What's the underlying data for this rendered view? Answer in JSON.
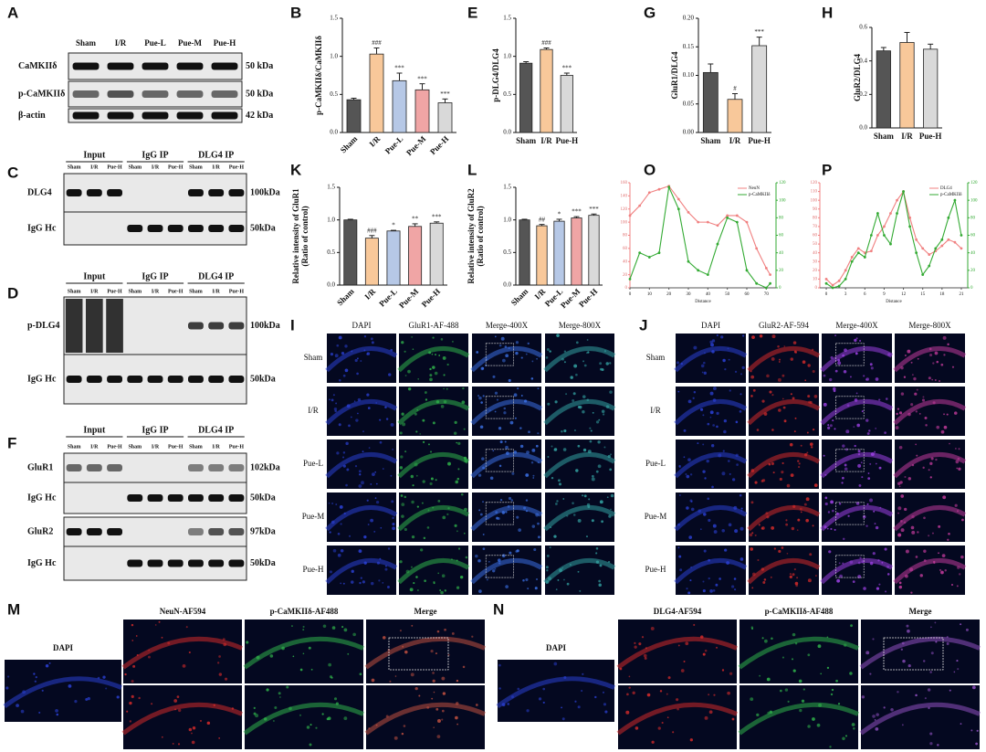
{
  "chart_data": [
    {
      "type": "bar",
      "panel": "B",
      "y_label": [
        "p-CaMKIIδ/CaMKIIδ"
      ],
      "categories": [
        "Sham",
        "I/R",
        "Pue-L",
        "Pue-M",
        "Pue-H"
      ],
      "values": [
        0.43,
        1.03,
        0.68,
        0.56,
        0.39
      ],
      "errors": [
        0.02,
        0.08,
        0.1,
        0.08,
        0.05
      ],
      "annotations": [
        null,
        "###",
        "***",
        "***",
        "***"
      ],
      "colors": [
        "#555555",
        "#f8c89a",
        "#b6c8e6",
        "#f0a5a5",
        "#d9d9d9"
      ],
      "ylim": [
        0,
        1.5
      ],
      "yticks": [
        {
          "value": 0,
          "label": "0.0"
        },
        0.5,
        {
          "value": 1,
          "label": "1.0"
        },
        1.5
      ]
    },
    {
      "type": "bar",
      "panel": "E",
      "y_label": [
        "p-DLG4/DLG4"
      ],
      "categories": [
        "Sham",
        "I/R",
        "Pue-H"
      ],
      "values": [
        0.91,
        1.09,
        0.75
      ],
      "errors": [
        0.02,
        0.02,
        0.03
      ],
      "annotations": [
        null,
        "###",
        "***"
      ],
      "colors": [
        "#555555",
        "#f8c89a",
        "#d9d9d9"
      ],
      "ylim": [
        0,
        1.5
      ],
      "yticks": [
        {
          "value": 0,
          "label": "0.0"
        },
        0.5,
        {
          "value": 1,
          "label": "1.0"
        },
        1.5
      ]
    },
    {
      "type": "bar",
      "panel": "G",
      "y_label": [
        "GluR1/DLG4"
      ],
      "categories": [
        "Sham",
        "I/R",
        "Pue-H"
      ],
      "values": [
        0.105,
        0.058,
        0.152
      ],
      "errors": [
        0.015,
        0.01,
        0.015
      ],
      "annotations": [
        null,
        "#",
        "***"
      ],
      "colors": [
        "#555555",
        "#f8c89a",
        "#d9d9d9"
      ],
      "ylim": [
        0,
        0.2
      ],
      "yticks": [
        {
          "value": 0,
          "label": "0.00"
        },
        0.05,
        {
          "value": 0.1,
          "label": "0.10"
        },
        0.15,
        {
          "value": 0.2,
          "label": "0.20"
        }
      ]
    },
    {
      "type": "bar",
      "panel": "H",
      "y_label": [
        "GluR2/DLG4"
      ],
      "categories": [
        "Sham",
        "I/R",
        "Pue-H"
      ],
      "values": [
        0.46,
        0.51,
        0.47
      ],
      "errors": [
        0.02,
        0.06,
        0.03
      ],
      "annotations": [
        null,
        null,
        null
      ],
      "colors": [
        "#555555",
        "#f8c89a",
        "#d9d9d9"
      ],
      "ylim": [
        0,
        0.6
      ],
      "yticks": [
        {
          "value": 0,
          "label": "0.0"
        },
        0.2,
        0.4,
        0.6
      ]
    },
    {
      "type": "bar",
      "panel": "K",
      "y_label": [
        "Relative intensity of GluR1",
        "(Ratio of control)"
      ],
      "categories": [
        "Sham",
        "I/R",
        "Pue-L",
        "Pue-M",
        "Pue-H"
      ],
      "values": [
        1.0,
        0.72,
        0.83,
        0.9,
        0.95
      ],
      "errors": [
        0.01,
        0.04,
        0.01,
        0.04,
        0.02
      ],
      "annotations": [
        null,
        "###",
        "*",
        "**",
        "***"
      ],
      "colors": [
        "#555555",
        "#f8c89a",
        "#b6c8e6",
        "#f0a5a5",
        "#d9d9d9"
      ],
      "ylim": [
        0,
        1.5
      ],
      "yticks": [
        {
          "value": 0,
          "label": "0.0"
        },
        0.5,
        {
          "value": 1,
          "label": "1.0"
        },
        1.5
      ]
    },
    {
      "type": "bar",
      "panel": "L",
      "y_label": [
        "Relative intensity of GluR2",
        "(Ratio of control)"
      ],
      "categories": [
        "Sham",
        "I/R",
        "Pue-L",
        "Pue-M",
        "Pue-H"
      ],
      "values": [
        1.0,
        0.91,
        0.98,
        1.03,
        1.07
      ],
      "errors": [
        0.01,
        0.02,
        0.03,
        0.02,
        0.02
      ],
      "annotations": [
        null,
        "##",
        "*",
        "***",
        "***"
      ],
      "colors": [
        "#555555",
        "#f8c89a",
        "#b6c8e6",
        "#f0a5a5",
        "#d9d9d9"
      ],
      "ylim": [
        0,
        1.5
      ],
      "yticks": [
        {
          "value": 0,
          "label": "0.0"
        },
        0.5,
        {
          "value": 1,
          "label": "1.0"
        },
        1.5
      ]
    },
    {
      "type": "line",
      "panel": "O",
      "x_label": "Distance",
      "legend": "upper right",
      "x": [
        0,
        5,
        10,
        15,
        20,
        25,
        30,
        35,
        40,
        45,
        50,
        55,
        60,
        65,
        70,
        72
      ],
      "series": [
        {
          "name": "NeuN",
          "color": "#f08080",
          "values": [
            110,
            125,
            145,
            150,
            155,
            135,
            115,
            100,
            100,
            95,
            110,
            110,
            100,
            60,
            30,
            20
          ]
        },
        {
          "name": "p-CaMKIIδ",
          "color": "#33aa33",
          "axis": "y2",
          "values": [
            10,
            40,
            35,
            40,
            115,
            90,
            30,
            20,
            15,
            50,
            80,
            75,
            20,
            5,
            0,
            5
          ]
        }
      ],
      "xlim": [
        0,
        75
      ],
      "xticks": [
        0,
        10,
        20,
        30,
        40,
        50,
        60,
        70
      ],
      "ylim": [
        0,
        160
      ],
      "yticks": [
        0,
        20,
        40,
        60,
        80,
        100,
        120,
        140,
        160
      ],
      "y2lim": [
        0,
        120
      ],
      "y2ticks": [
        0,
        20,
        40,
        60,
        80,
        100,
        120
      ]
    },
    {
      "type": "line",
      "panel": "P",
      "x_label": "Distance",
      "legend": "upper right",
      "x": [
        0,
        1,
        2,
        3,
        4,
        5,
        6,
        7,
        8,
        9,
        10,
        11,
        12,
        13,
        14,
        15,
        16,
        17,
        18,
        19,
        20,
        21
      ],
      "series": [
        {
          "name": "DLG4",
          "color": "#f08080",
          "values": [
            10,
            3,
            8,
            20,
            35,
            45,
            40,
            42,
            60,
            70,
            85,
            100,
            110,
            80,
            55,
            45,
            38,
            42,
            48,
            55,
            52,
            45
          ]
        },
        {
          "name": "p-CaMKIIδ",
          "color": "#33aa33",
          "axis": "y2",
          "values": [
            5,
            0,
            2,
            10,
            30,
            40,
            35,
            60,
            85,
            60,
            50,
            85,
            110,
            70,
            40,
            15,
            25,
            45,
            55,
            80,
            100,
            60
          ]
        }
      ],
      "xlim": [
        -1,
        22
      ],
      "xticks": [
        0,
        3,
        6,
        9,
        12,
        15,
        18,
        21
      ],
      "ylim": [
        0,
        120
      ],
      "yticks": [
        0,
        10,
        20,
        30,
        40,
        50,
        60,
        70,
        80,
        90,
        100,
        110,
        120
      ],
      "y2lim": [
        0,
        120
      ],
      "y2ticks": [
        0,
        20,
        40,
        60,
        80,
        100,
        120
      ]
    }
  ],
  "blots": [
    {
      "panel": "A",
      "lanes": [
        "Sham",
        "I/R",
        "Pue-L",
        "Pue-M",
        "Pue-H"
      ],
      "rows": [
        {
          "protein": "CaMKIIδ",
          "size": "50 kDa"
        },
        {
          "protein": "p-CaMKIIδ",
          "size": "50 kDa"
        },
        {
          "protein": "β-actin",
          "size": "42 kDa"
        }
      ]
    },
    {
      "panel": "C",
      "groups": [
        "Input",
        "IgG IP",
        "DLG4 IP"
      ],
      "lanes": [
        "Sham",
        "I/R",
        "Pue-H"
      ],
      "rows": [
        {
          "protein": "DLG4",
          "size": "100kDa"
        },
        {
          "protein": "IgG Hc",
          "size": "50kDa"
        }
      ]
    },
    {
      "panel": "D",
      "groups": [
        "Input",
        "IgG IP",
        "DLG4 IP"
      ],
      "lanes": [
        "Sham",
        "I/R",
        "Pue-H"
      ],
      "rows": [
        {
          "protein": "p-DLG4",
          "size": "100kDa"
        },
        {
          "protein": "IgG Hc",
          "size": "50kDa"
        }
      ]
    },
    {
      "panel": "F",
      "groups": [
        "Input",
        "IgG IP",
        "DLG4 IP"
      ],
      "lanes": [
        "Sham",
        "I/R",
        "Pue-H"
      ],
      "rows": [
        {
          "protein": "GluR1",
          "size": "102kDa"
        },
        {
          "protein": "IgG Hc",
          "size": "50kDa"
        },
        {
          "protein": "GluR2",
          "size": "97kDa"
        },
        {
          "protein": "IgG Hc",
          "size": "50kDa"
        }
      ]
    }
  ],
  "micrographs": [
    {
      "panel": "I",
      "columns": [
        "DAPI",
        "GluR1-AF-488",
        "Merge-400X",
        "Merge-800X"
      ],
      "rows": [
        "Sham",
        "I/R",
        "Pue-L",
        "Pue-M",
        "Pue-H"
      ]
    },
    {
      "panel": "J",
      "columns": [
        "DAPI",
        "GluR2-AF-594",
        "Merge-400X",
        "Merge-800X"
      ],
      "rows": [
        "Sham",
        "I/R",
        "Pue-L",
        "Pue-M",
        "Pue-H"
      ]
    },
    {
      "panel": "M",
      "columns": [
        "DAPI",
        "NeuN-AF594",
        "p-CaMKIIδ-AF488",
        "Merge"
      ]
    },
    {
      "panel": "N",
      "columns": [
        "DAPI",
        "DLG4-AF594",
        "p-CaMKIIδ-AF488",
        "Merge"
      ]
    }
  ]
}
